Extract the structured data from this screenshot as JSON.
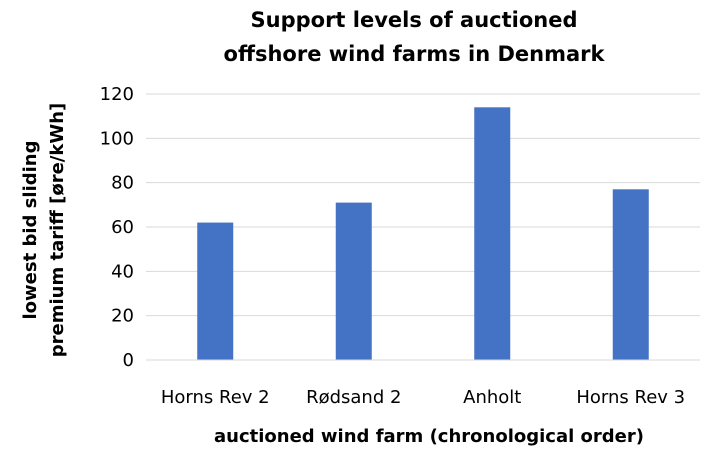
{
  "chart_data": {
    "type": "bar",
    "title_lines": [
      "Support levels of auctioned",
      "offshore wind farms in Denmark"
    ],
    "xlabel": "auctioned wind farm (chronological order)",
    "ylabel_lines": [
      "lowest bid sliding",
      "premium tariff [øre/kWh]"
    ],
    "categories": [
      "Horns Rev 2",
      "Rødsand 2",
      "Anholt",
      "Horns Rev 3"
    ],
    "values": [
      62,
      71,
      114,
      77
    ],
    "ylim": [
      0,
      120
    ],
    "yticks": [
      0,
      20,
      40,
      60,
      80,
      100,
      120
    ],
    "grid": true,
    "legend": false,
    "bar_color": "#4472C4",
    "grid_color": "#D9D9D9"
  }
}
